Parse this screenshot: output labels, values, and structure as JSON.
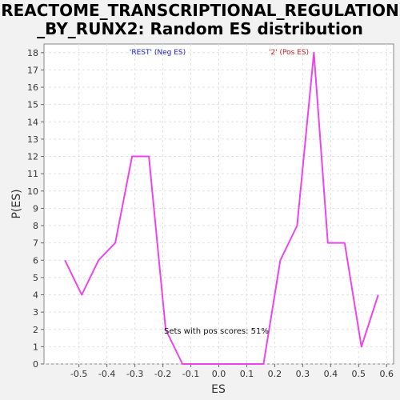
{
  "chart_data": {
    "type": "line",
    "title_lines": [
      "REACTOME_TRANSCRIPTIONAL_REGULATION",
      "_BY_RUNX2: Random ES distribution"
    ],
    "xlabel": "ES",
    "ylabel": "P(ES)",
    "xlim": [
      -0.625,
      0.625
    ],
    "ylim": [
      0,
      18.5
    ],
    "x_ticks": [
      -0.5,
      -0.4,
      -0.3,
      -0.2,
      -0.1,
      0.0,
      0.1,
      0.2,
      0.3,
      0.4,
      0.5,
      0.6
    ],
    "x_tick_labels": [
      "-0.5",
      "-0.4",
      "-0.3",
      "-0.2",
      "-0.1",
      "0.0",
      "0.1",
      "0.2",
      "0.3",
      "0.4",
      "0.5",
      "0.6"
    ],
    "y_ticks": [
      0,
      1,
      2,
      3,
      4,
      5,
      6,
      7,
      8,
      9,
      10,
      11,
      12,
      13,
      14,
      15,
      16,
      17,
      18
    ],
    "y_tick_labels": [
      "0",
      "1",
      "2",
      "3",
      "4",
      "5",
      "6",
      "7",
      "8",
      "9",
      "10",
      "11",
      "12",
      "13",
      "14",
      "15",
      "16",
      "17",
      "18"
    ],
    "grid": true,
    "series": [
      {
        "color": "#ee44ee",
        "x": [
          -0.55,
          -0.49,
          -0.43,
          -0.37,
          -0.31,
          -0.25,
          -0.19,
          -0.13,
          -0.07,
          -0.01,
          0.05,
          0.11,
          0.16,
          0.22,
          0.28,
          0.34,
          0.39,
          0.45,
          0.51,
          0.57
        ],
        "y": [
          6,
          4,
          6,
          7,
          12,
          12,
          2,
          0,
          0,
          0,
          0,
          0,
          0,
          6,
          8,
          18,
          7,
          7,
          1,
          4
        ]
      }
    ],
    "annotations": {
      "neg_label": "'REST' (Neg ES)",
      "neg_color": "#2222cc",
      "pos_label": "'2' (Pos ES)",
      "pos_color": "#cc2222",
      "note": "Sets with pos scores: 51%"
    }
  }
}
